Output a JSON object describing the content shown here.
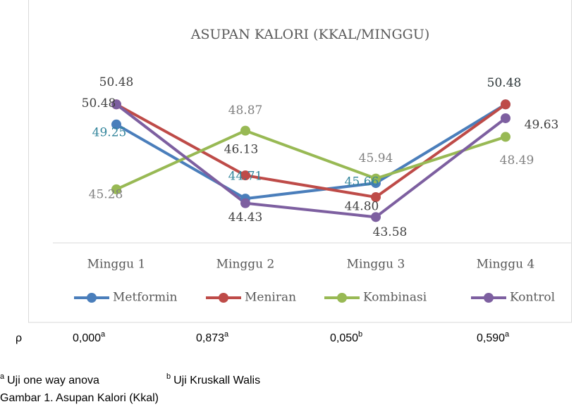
{
  "chart_data": {
    "type": "line",
    "title": "ASUPAN KALORI (KKAL/MINGGU)",
    "categories": [
      "Minggu 1",
      "Minggu 2",
      "Minggu 3",
      "Minggu 4"
    ],
    "series": [
      {
        "name": "Metformin",
        "color": "#4a7ebb",
        "label_color": "#31849b",
        "values": [
          49.25,
          44.71,
          45.66,
          50.48
        ]
      },
      {
        "name": "Meniran",
        "color": "#be4b48",
        "label_color": "#404040",
        "values": [
          50.48,
          46.13,
          44.8,
          50.48
        ]
      },
      {
        "name": "Kombinasi",
        "color": "#98b954",
        "label_color": "#808080",
        "values": [
          45.28,
          48.87,
          45.94,
          48.49
        ]
      },
      {
        "name": "Kontrol",
        "color": "#7d5fa0",
        "label_color": "#404040",
        "values": [
          50.48,
          44.43,
          43.58,
          49.63
        ]
      }
    ],
    "value_labels": [
      [
        "49.25",
        "44.71",
        "45.66",
        "50.48"
      ],
      [
        "50.48",
        "46.13",
        "44.80",
        "50.48"
      ],
      [
        "45.28",
        "48.87",
        "45.94",
        "48.49"
      ],
      [
        "50.48",
        "44.43",
        "43.58",
        "49.63"
      ]
    ],
    "ylim": [
      42,
      52
    ],
    "legend": "bottom"
  },
  "p_row": {
    "label": "ρ",
    "values": [
      {
        "text": "0,000",
        "sup": "a"
      },
      {
        "text": "0,873",
        "sup": "a"
      },
      {
        "text": "0,050",
        "sup": "b"
      },
      {
        "text": "0,590",
        "sup": "a"
      }
    ]
  },
  "footnotes": [
    {
      "sup": "a",
      "text": "Uji one way anova"
    },
    {
      "sup": "b",
      "text": "Uji Kruskall Walis"
    }
  ],
  "caption": "Gambar 1. Asupan Kalori (Kkal)"
}
